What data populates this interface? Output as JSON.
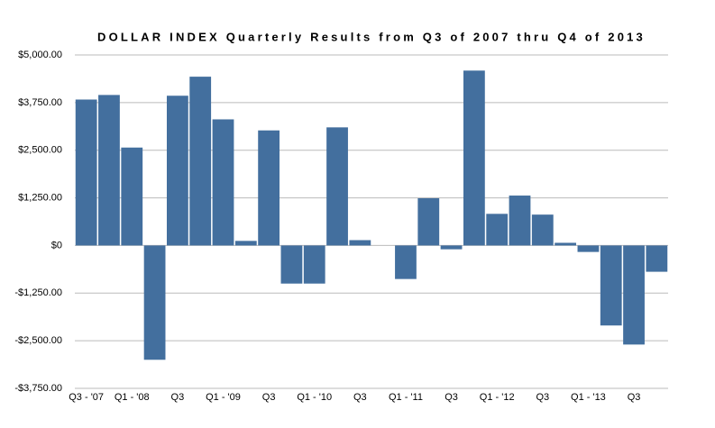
{
  "chart_data": {
    "type": "bar",
    "title": "DOLLAR INDEX  Quarterly Results from Q3 of 2007 thru Q4 of 2013",
    "categories": [
      "Q3 - '07",
      null,
      "Q1 - '08",
      null,
      "Q3",
      null,
      "Q1 - '09",
      null,
      "Q3",
      null,
      "Q1 - '10",
      null,
      "Q3",
      null,
      "Q1 - '11",
      null,
      "Q3",
      null,
      "Q1 - '12",
      null,
      "Q3",
      null,
      "Q1 - '13",
      null,
      "Q3",
      null
    ],
    "values": [
      3830,
      3950,
      2570,
      -3000,
      3930,
      4430,
      3310,
      120,
      3020,
      -1000,
      -1000,
      3100,
      140,
      0,
      -880,
      1240,
      -100,
      4590,
      830,
      1310,
      810,
      70,
      -170,
      -2100,
      -2600,
      -690
    ],
    "color": "#436f9e",
    "ylim": [
      -3750,
      5000
    ],
    "yticks": [
      {
        "value": -3750,
        "label": "-$3,750.00"
      },
      {
        "value": -2500,
        "label": "-$2,500.00"
      },
      {
        "value": -1250,
        "label": "-$1,250.00"
      },
      {
        "value": 0,
        "label": "$0"
      },
      {
        "value": 1250,
        "label": "$1,250.00"
      },
      {
        "value": 2500,
        "label": "$2,500.00"
      },
      {
        "value": 3750,
        "label": "$3,750.00"
      },
      {
        "value": 5000,
        "label": "$5,000.00"
      }
    ],
    "grid": true
  }
}
